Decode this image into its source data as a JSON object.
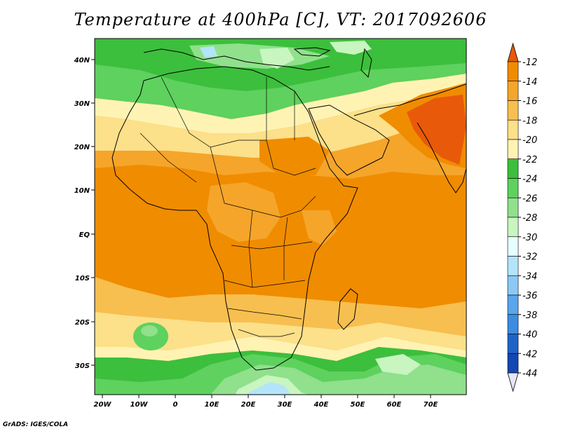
{
  "title": "Temperature at 400hPa [C], VT: 2017092606",
  "credit": "GrADS: IGES/COLA",
  "axes": {
    "lat_labels": [
      "40N",
      "30N",
      "20N",
      "10N",
      "EQ",
      "10S",
      "20S",
      "30S"
    ],
    "lon_labels": [
      "20W",
      "10W",
      "0",
      "10E",
      "20E",
      "30E",
      "40E",
      "50E",
      "60E",
      "70E"
    ]
  },
  "colorbar": {
    "levels": [
      -12,
      -14,
      -16,
      -18,
      -20,
      -22,
      -24,
      -26,
      -28,
      -30,
      -32,
      -34,
      -36,
      -38,
      -40,
      -42,
      -44
    ],
    "labels": [
      "-12",
      "-14",
      "-16",
      "-18",
      "-20",
      "-22",
      "-24",
      "-26",
      "-28",
      "-30",
      "-32",
      "-34",
      "-36",
      "-38",
      "-40",
      "-42",
      "-44"
    ],
    "colors": [
      "#e85a0a",
      "#f08c00",
      "#f5a52a",
      "#f7bf4f",
      "#fce08a",
      "#fff3b4",
      "#3cbf3c",
      "#5ed15e",
      "#90e08c",
      "#c8f5c0",
      "#e6ffff",
      "#b4e4fa",
      "#8cc8f5",
      "#5aa5eb",
      "#3c8ce1",
      "#1e64c8",
      "#1446b4",
      "#0a1e82"
    ]
  }
}
